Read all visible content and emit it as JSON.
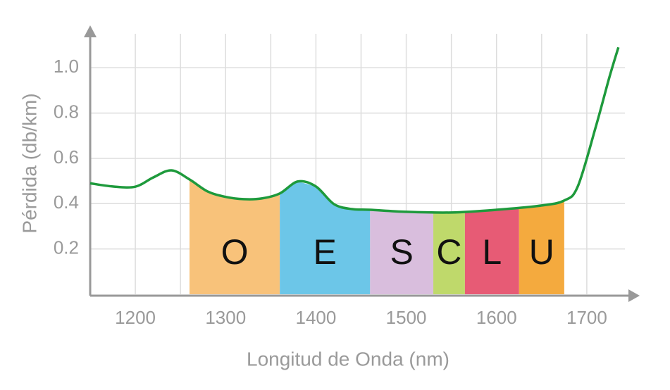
{
  "chart_data": {
    "type": "line",
    "x_label": "Longitud de Onda (nm)",
    "y_label": "Pérdida (db/km)",
    "x": [
      1150,
      1175,
      1200,
      1220,
      1240,
      1260,
      1280,
      1300,
      1320,
      1340,
      1360,
      1380,
      1400,
      1420,
      1440,
      1460,
      1500,
      1550,
      1600,
      1650,
      1675,
      1690,
      1710,
      1725,
      1735
    ],
    "series": [
      {
        "color": "#1e9a3c",
        "values": [
          0.49,
          0.476,
          0.475,
          0.516,
          0.547,
          0.507,
          0.454,
          0.43,
          0.42,
          0.423,
          0.445,
          0.498,
          0.476,
          0.398,
          0.376,
          0.373,
          0.364,
          0.361,
          0.373,
          0.392,
          0.414,
          0.476,
          0.74,
          0.958,
          1.09
        ]
      }
    ],
    "bands": [
      {
        "name": "O",
        "color": "#f8c27a",
        "range": [
          1260,
          1360
        ]
      },
      {
        "name": "E",
        "color": "#6cc6e8",
        "range": [
          1360,
          1460
        ]
      },
      {
        "name": "S",
        "color": "#d9bedd",
        "range": [
          1460,
          1530
        ]
      },
      {
        "name": "C",
        "color": "#bfd96b",
        "range": [
          1530,
          1565
        ]
      },
      {
        "name": "L",
        "color": "#e75b75",
        "range": [
          1565,
          1625
        ]
      },
      {
        "name": "U",
        "color": "#f4aa3e",
        "range": [
          1625,
          1675
        ]
      }
    ],
    "xlim": [
      1150,
      1750
    ],
    "ylim": [
      0,
      1.15
    ],
    "xticks": [
      1200,
      1300,
      1400,
      1500,
      1600,
      1700
    ],
    "yticks": [
      0.2,
      0.4,
      0.6,
      0.8,
      {
        "value": 1,
        "label": "1.0"
      }
    ],
    "grid": true
  }
}
